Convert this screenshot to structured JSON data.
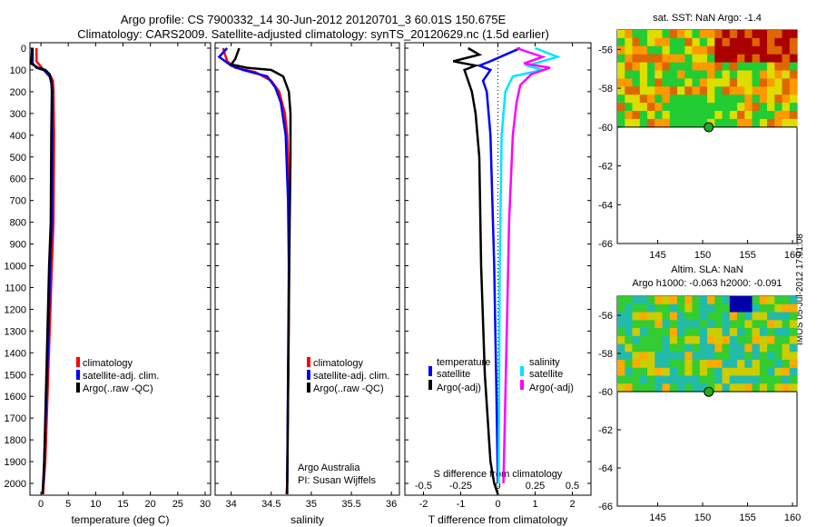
{
  "title_line1": "Argo profile: CS 7900332_14 30-Jun-2012 20120701_3 60.01S 150.675E",
  "title_line2": "Climatology: CARS2009. Satellite-adjusted climatology: synTS_20120629.nc (1.5d earlier)",
  "stamp": "IMOS 05-Jul-2012 17:01:08",
  "colors": {
    "climatology": "#ff0000",
    "satellite": "#0000ff",
    "argo": "#000000",
    "sat_s": "#00e5ff",
    "argo_s": "#ff00ff"
  },
  "chart_data": [
    {
      "type": "line",
      "xlabel": "temperature (deg C)",
      "ylabel": "",
      "xlim": [
        -2,
        31
      ],
      "ylim": [
        2070,
        0
      ],
      "xticks": [
        "0",
        "5",
        "10",
        "15",
        "20",
        "25",
        "30"
      ],
      "yticks": [
        "0",
        "100",
        "200",
        "300",
        "400",
        "500",
        "600",
        "700",
        "800",
        "900",
        "1000",
        "1100",
        "1200",
        "1300",
        "1400",
        "1500",
        "1600",
        "1700",
        "1800",
        "1900",
        "2000"
      ],
      "legend": [
        "climatology",
        "satellite-adj. clim.",
        "Argo(..raw -QC)"
      ],
      "legend_position": "lower-center",
      "series": [
        {
          "name": "climatology",
          "color": "climatology",
          "points": [
            [
              -0.8,
              0
            ],
            [
              -0.8,
              60
            ],
            [
              0.5,
              100
            ],
            [
              1.8,
              130
            ],
            [
              2.2,
              150
            ],
            [
              2.3,
              200
            ],
            [
              2.4,
              400
            ],
            [
              2.3,
              800
            ],
            [
              2.0,
              1000
            ],
            [
              1.6,
              1300
            ],
            [
              1.2,
              1600
            ],
            [
              0.8,
              1900
            ],
            [
              0.5,
              2000
            ],
            [
              0.4,
              2050
            ]
          ]
        },
        {
          "name": "satellite-adj. clim.",
          "color": "satellite",
          "points": [
            [
              -1.5,
              0
            ],
            [
              -1.5,
              70
            ],
            [
              -0.8,
              90
            ],
            [
              0.5,
              100
            ],
            [
              1.6,
              130
            ],
            [
              2.0,
              170
            ],
            [
              2.1,
              200
            ],
            [
              2.1,
              400
            ],
            [
              2.0,
              800
            ],
            [
              1.7,
              1000
            ],
            [
              1.4,
              1300
            ],
            [
              1.0,
              1600
            ],
            [
              0.6,
              1900
            ],
            [
              0.5,
              2000
            ]
          ]
        },
        {
          "name": "Argo(..raw -QC)",
          "color": "argo",
          "points": [
            [
              -1.6,
              0
            ],
            [
              -1.7,
              50
            ],
            [
              -1.8,
              70
            ],
            [
              -0.5,
              90
            ],
            [
              0.8,
              100
            ],
            [
              1.6,
              120
            ],
            [
              1.9,
              150
            ],
            [
              2.0,
              200
            ],
            [
              1.9,
              400
            ],
            [
              1.8,
              800
            ],
            [
              1.5,
              1000
            ],
            [
              1.2,
              1300
            ],
            [
              0.9,
              1600
            ],
            [
              0.6,
              1900
            ],
            [
              0.4,
              2000
            ],
            [
              0.3,
              2050
            ]
          ]
        }
      ]
    },
    {
      "type": "line",
      "xlabel": "salinity",
      "xlim": [
        33.8,
        36.1
      ],
      "ylim": [
        2070,
        0
      ],
      "xticks": [
        "34",
        "34.5",
        "35",
        "35.5",
        "36"
      ],
      "legend": [
        "climatology",
        "satellite-adj. clim.",
        "Argo(..raw -QC)"
      ],
      "legend_position": "lower-center",
      "annotation": [
        "Argo Australia",
        "PI: Susan Wijffels"
      ],
      "series": [
        {
          "name": "climatology",
          "color": "climatology",
          "points": [
            [
              33.9,
              0
            ],
            [
              33.95,
              60
            ],
            [
              34.05,
              90
            ],
            [
              34.3,
              110
            ],
            [
              34.5,
              150
            ],
            [
              34.6,
              200
            ],
            [
              34.67,
              300
            ],
            [
              34.7,
              400
            ],
            [
              34.72,
              600
            ],
            [
              34.72,
              800
            ],
            [
              34.72,
              1200
            ],
            [
              34.71,
              1600
            ],
            [
              34.7,
              2000
            ],
            [
              34.69,
              2050
            ]
          ]
        },
        {
          "name": "satellite-adj. clim.",
          "color": "satellite",
          "points": [
            [
              33.95,
              0
            ],
            [
              33.85,
              40
            ],
            [
              34.0,
              80
            ],
            [
              34.15,
              100
            ],
            [
              34.45,
              130
            ],
            [
              34.55,
              180
            ],
            [
              34.62,
              250
            ],
            [
              34.68,
              400
            ],
            [
              34.71,
              700
            ],
            [
              34.72,
              1000
            ],
            [
              34.71,
              1500
            ],
            [
              34.7,
              2000
            ]
          ]
        },
        {
          "name": "Argo(..raw -QC)",
          "color": "argo",
          "points": [
            [
              34.1,
              0
            ],
            [
              34.05,
              50
            ],
            [
              34.0,
              75
            ],
            [
              34.2,
              90
            ],
            [
              34.5,
              100
            ],
            [
              34.65,
              130
            ],
            [
              34.72,
              200
            ],
            [
              34.74,
              300
            ],
            [
              34.74,
              500
            ],
            [
              34.73,
              800
            ],
            [
              34.72,
              1200
            ],
            [
              34.71,
              1600
            ],
            [
              34.7,
              2000
            ],
            [
              34.7,
              2050
            ]
          ]
        }
      ]
    },
    {
      "type": "line",
      "xlabel": "T difference from climatology",
      "xlabel_top": "S difference from climatology",
      "xlim": [
        -2.5,
        2.5
      ],
      "ylim": [
        2070,
        0
      ],
      "xticks": [
        "-2",
        "-1",
        "0",
        "1",
        "2"
      ],
      "xticks_s": [
        "-0.5",
        "-0.25",
        "0",
        "0.25",
        "0.5"
      ],
      "legend_left_title": "temperature",
      "legend_right_title": "salinity",
      "legend_left": [
        "satellite",
        "Argo(-adj)"
      ],
      "legend_right": [
        "satellite",
        "Argo(-adj)"
      ],
      "legend_position": "lower-center",
      "series": [
        {
          "name": "satellite",
          "color": "satellite",
          "points": [
            [
              0.6,
              0
            ],
            [
              0.2,
              30
            ],
            [
              -0.2,
              60
            ],
            [
              -0.5,
              80
            ],
            [
              -0.2,
              100
            ],
            [
              -0.4,
              150
            ],
            [
              -0.3,
              200
            ],
            [
              -0.2,
              400
            ],
            [
              -0.1,
              1000
            ],
            [
              -0.05,
              1500
            ],
            [
              0.0,
              2000
            ]
          ]
        },
        {
          "name": "Argo(-adj)",
          "color": "argo",
          "points": [
            [
              -0.8,
              0
            ],
            [
              -0.5,
              30
            ],
            [
              -1.2,
              60
            ],
            [
              -0.6,
              80
            ],
            [
              -0.9,
              100
            ],
            [
              -0.8,
              150
            ],
            [
              -0.7,
              200
            ],
            [
              -0.6,
              300
            ],
            [
              -0.5,
              500
            ],
            [
              -0.45,
              1000
            ],
            [
              -0.35,
              1500
            ],
            [
              -0.2,
              1900
            ],
            [
              -0.1,
              2000
            ],
            [
              0.0,
              2050
            ]
          ]
        },
        {
          "name": "satellite",
          "color": "sat_s",
          "points": [
            [
              1.0,
              0
            ],
            [
              1.6,
              40
            ],
            [
              0.8,
              80
            ],
            [
              1.2,
              100
            ],
            [
              0.4,
              130
            ],
            [
              0.2,
              200
            ],
            [
              0.1,
              400
            ],
            [
              0.05,
              1000
            ],
            [
              0.02,
              2000
            ]
          ]
        },
        {
          "name": "Argo(-adj)",
          "color": "argo_s",
          "points": [
            [
              0.5,
              0
            ],
            [
              1.2,
              40
            ],
            [
              0.7,
              70
            ],
            [
              1.4,
              90
            ],
            [
              0.9,
              120
            ],
            [
              0.6,
              170
            ],
            [
              0.5,
              250
            ],
            [
              0.4,
              400
            ],
            [
              0.3,
              800
            ],
            [
              0.25,
              1200
            ],
            [
              0.2,
              1600
            ],
            [
              0.15,
              2000
            ]
          ]
        }
      ]
    },
    {
      "type": "heatmap",
      "title": "sat. SST: NaN Argo: -1.4",
      "xlim": [
        140.5,
        160.5
      ],
      "ylim": [
        -66,
        -55
      ],
      "xticks": [
        "145",
        "150",
        "155",
        "160"
      ],
      "yticks": [
        "-56",
        "-58",
        "-60",
        "-62",
        "-64",
        "-66"
      ],
      "data_coverage_lat": [
        -60,
        -55
      ],
      "marker": [
        150.675,
        -60.01
      ]
    },
    {
      "type": "heatmap",
      "title": "Altim. SLA: NaN",
      "subtitle": "Argo h1000: -0.063 h2000: -0.091",
      "xlim": [
        140.5,
        160.5
      ],
      "ylim": [
        -66,
        -55
      ],
      "xticks": [
        "145",
        "150",
        "155",
        "160"
      ],
      "yticks": [
        "-56",
        "-58",
        "-60",
        "-62",
        "-64",
        "-66"
      ],
      "data_coverage_lat": [
        -60,
        -55
      ],
      "marker": [
        150.675,
        -60.01
      ]
    }
  ]
}
